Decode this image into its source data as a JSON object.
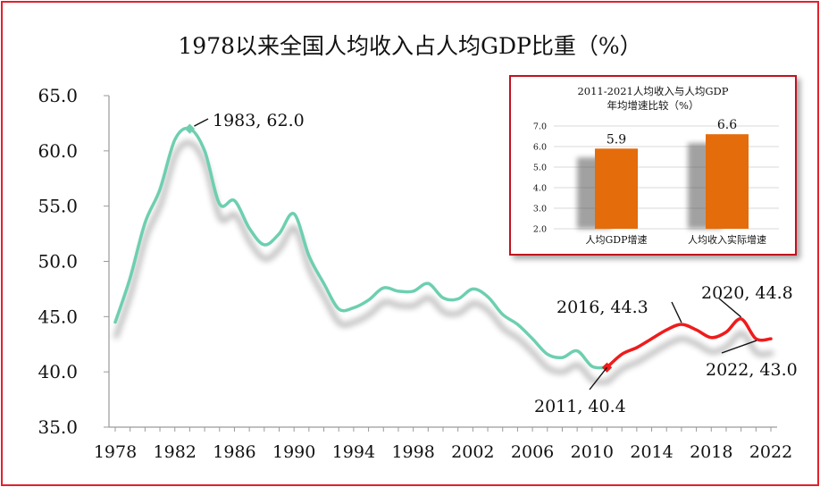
{
  "title": "1978以来全国人均收入占人均GDP比重（%）",
  "colors": {
    "frame": "#e2202b",
    "line_early": "#6dcfb0",
    "line_recent": "#ee1c1c",
    "bar": "#e46c0a",
    "marker": "#ee1c1c"
  },
  "chart_data": [
    {
      "type": "line",
      "title": "1978以来全国人均收入占人均GDP比重（%）",
      "xlabel": "",
      "ylabel": "",
      "x_ticks": [
        "1978",
        "1982",
        "1986",
        "1990",
        "1994",
        "1998",
        "2002",
        "2006",
        "2010",
        "2014",
        "2018",
        "2022"
      ],
      "y_ticks": [
        "35.0",
        "40.0",
        "45.0",
        "50.0",
        "55.0",
        "60.0",
        "65.0"
      ],
      "xlim": [
        1978,
        2022
      ],
      "ylim": [
        35,
        65
      ],
      "grid": false,
      "series": [
        {
          "color": "#6dcfb0",
          "x": [
            1978,
            1979,
            1980,
            1981,
            1982,
            1983,
            1984,
            1985,
            1986,
            1987,
            1988,
            1989,
            1990,
            1991,
            1992,
            1993,
            1994,
            1995,
            1996,
            1997,
            1998,
            1999,
            2000,
            2001,
            2002,
            2003,
            2004,
            2005,
            2006,
            2007,
            2008,
            2009,
            2010,
            2011
          ],
          "y": [
            44.5,
            48.5,
            53.5,
            56.5,
            61.0,
            62.0,
            60.0,
            55.2,
            55.5,
            53.0,
            51.5,
            52.5,
            54.3,
            50.5,
            48.0,
            45.7,
            45.8,
            46.5,
            47.6,
            47.3,
            47.3,
            48.0,
            46.7,
            46.6,
            47.5,
            46.8,
            45.2,
            44.3,
            43.0,
            41.6,
            41.3,
            41.9,
            40.5,
            40.4
          ]
        },
        {
          "color": "#ee1c1c",
          "x": [
            2011,
            2012,
            2013,
            2014,
            2015,
            2016,
            2017,
            2018,
            2019,
            2020,
            2021,
            2022
          ],
          "y": [
            40.4,
            41.6,
            42.2,
            43.0,
            43.8,
            44.3,
            43.8,
            43.1,
            43.6,
            44.8,
            43.0,
            43.0
          ]
        }
      ],
      "annotations": [
        {
          "label": "1983, 62.0",
          "x": 1983,
          "y": 62.0
        },
        {
          "label": "2011, 40.4",
          "x": 2011,
          "y": 40.4
        },
        {
          "label": "2016, 44.3",
          "x": 2016,
          "y": 44.3
        },
        {
          "label": "2020, 44.8",
          "x": 2020,
          "y": 44.8
        },
        {
          "label": "2022, 43.0",
          "x": 2022,
          "y": 43.0
        }
      ]
    },
    {
      "type": "bar",
      "title": "2011-2021人均收入与人均GDP年均增速比较（%）",
      "title_lines": [
        "2011-2021人均收入与人均GDP",
        "年均增速比较（%）"
      ],
      "categories": [
        "人均GDP增速",
        "人均收入实际增速"
      ],
      "values": [
        5.9,
        6.6
      ],
      "data_labels": [
        "5.9",
        "6.6"
      ],
      "y_ticks": [
        "2.0",
        "3.0",
        "4.0",
        "5.0",
        "6.0",
        "7.0"
      ],
      "ylim": [
        2.0,
        7.0
      ],
      "grid": true,
      "color": "#e46c0a"
    }
  ]
}
